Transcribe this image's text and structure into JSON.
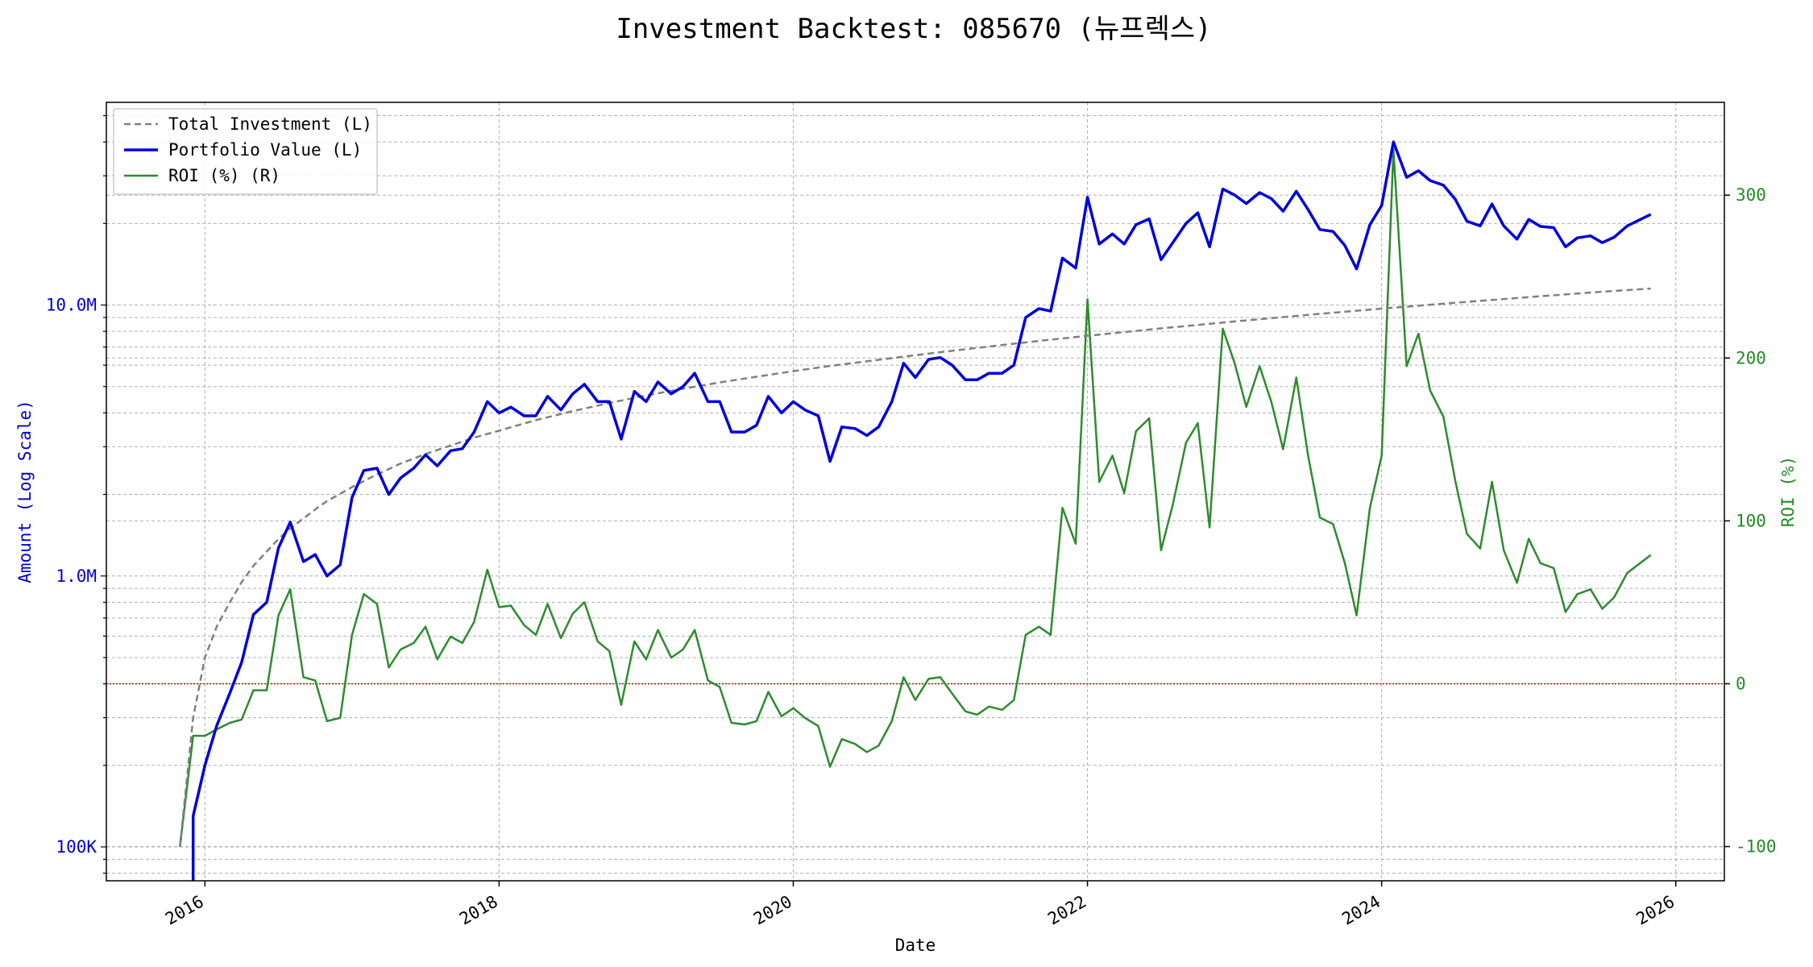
{
  "chart_data": {
    "type": "line",
    "title": "Investment Backtest: 085670 (뉴프렉스)",
    "xlabel": "Date",
    "ylabel_left": "Amount (Log Scale)",
    "ylabel_right": "ROI (%)",
    "y_left_scale": "log",
    "y_left_ticks": [
      {
        "value": 100000,
        "label": "100K"
      },
      {
        "value": 1000000,
        "label": "1.0M"
      },
      {
        "value": 10000000,
        "label": "10.0M"
      }
    ],
    "y_right_ticks": [
      -100,
      0,
      100,
      200,
      300
    ],
    "x_ticks": [
      "2016",
      "2018",
      "2020",
      "2022",
      "2024",
      "2026"
    ],
    "ylim_left": [
      75000,
      56000000
    ],
    "ylim_right": [
      -121,
      357
    ],
    "xlim": [
      2015.33,
      2026.33
    ],
    "grid": true,
    "zero_line_roi": 0,
    "legend_position": "upper-left",
    "colors": {
      "investment": "#808080",
      "portfolio": "#0000dd",
      "roi": "#2e8b2e",
      "zero_line": "#dd0000"
    },
    "legend": [
      "Total Investment (L)",
      "Portfolio Value (L)",
      "ROI (%) (R)"
    ],
    "series": [
      {
        "name": "Total Investment (L)",
        "axis": "left",
        "style": "dashed",
        "x": [
          2015.83,
          2015.92,
          2016.0,
          2016.08,
          2016.17,
          2016.25,
          2016.33,
          2016.42,
          2016.5,
          2016.58,
          2016.67,
          2016.75,
          2016.83,
          2016.92,
          2017.0,
          2017.17,
          2017.33,
          2017.5,
          2017.67,
          2017.83,
          2018.0,
          2018.25,
          2018.5,
          2018.75,
          2019.0,
          2019.25,
          2019.5,
          2019.75,
          2020.0,
          2020.25,
          2020.5,
          2020.75,
          2021.0,
          2021.25,
          2021.5,
          2021.75,
          2022.0,
          2022.5,
          2023.0,
          2023.5,
          2024.0,
          2024.5,
          2025.0,
          2025.5,
          2025.83
        ],
        "values": [
          100000,
          300000,
          500000,
          650000,
          800000,
          950000,
          1090000,
          1230000,
          1370000,
          1500000,
          1630000,
          1760000,
          1890000,
          2010000,
          2130000,
          2370000,
          2600000,
          2820000,
          3030000,
          3240000,
          3440000,
          3760000,
          4060000,
          4350000,
          4640000,
          4910000,
          5180000,
          5440000,
          5700000,
          5960000,
          6200000,
          6450000,
          6700000,
          6950000,
          7200000,
          7450000,
          7700000,
          8200000,
          8700000,
          9200000,
          9700000,
          10200000,
          10700000,
          11200000,
          11500000
        ]
      },
      {
        "name": "Portfolio Value (L)",
        "axis": "left",
        "style": "solid",
        "x": [
          2015.92,
          2016.0,
          2016.08,
          2016.17,
          2016.25,
          2016.33,
          2016.42,
          2016.5,
          2016.58,
          2016.67,
          2016.75,
          2016.83,
          2016.92,
          2017.0,
          2017.08,
          2017.17,
          2017.25,
          2017.33,
          2017.42,
          2017.5,
          2017.58,
          2017.67,
          2017.75,
          2017.83,
          2017.92,
          2018.0,
          2018.08,
          2018.17,
          2018.25,
          2018.33,
          2018.42,
          2018.5,
          2018.58,
          2018.67,
          2018.75,
          2018.83,
          2018.92,
          2019.0,
          2019.08,
          2019.17,
          2019.25,
          2019.33,
          2019.42,
          2019.5,
          2019.58,
          2019.67,
          2019.75,
          2019.83,
          2019.92,
          2020.0,
          2020.08,
          2020.17,
          2020.25,
          2020.33,
          2020.42,
          2020.5,
          2020.58,
          2020.67,
          2020.75,
          2020.83,
          2020.92,
          2021.0,
          2021.08,
          2021.17,
          2021.25,
          2021.33,
          2021.42,
          2021.5,
          2021.58,
          2021.67,
          2021.75,
          2021.83,
          2021.92,
          2022.0,
          2022.08,
          2022.17,
          2022.25,
          2022.33,
          2022.42,
          2022.5,
          2022.58,
          2022.67,
          2022.75,
          2022.83,
          2022.92,
          2023.0,
          2023.08,
          2023.17,
          2023.25,
          2023.33,
          2023.42,
          2023.5,
          2023.58,
          2023.67,
          2023.75,
          2023.83,
          2023.92,
          2024.0,
          2024.08,
          2024.17,
          2024.25,
          2024.33,
          2024.42,
          2024.5,
          2024.58,
          2024.67,
          2024.75,
          2024.83,
          2024.92,
          2025.0,
          2025.08,
          2025.17,
          2025.25,
          2025.33,
          2025.42,
          2025.5,
          2025.58,
          2025.67,
          2025.83
        ],
        "values": [
          130000,
          200000,
          280000,
          370000,
          480000,
          720000,
          800000,
          1270000,
          1580000,
          1130000,
          1200000,
          1000000,
          1100000,
          1950000,
          2450000,
          2500000,
          2000000,
          2300000,
          2500000,
          2800000,
          2550000,
          2900000,
          2950000,
          3400000,
          4400000,
          4000000,
          4200000,
          3900000,
          3900000,
          4600000,
          4100000,
          4700000,
          5100000,
          4400000,
          4400000,
          3200000,
          4800000,
          4400000,
          5200000,
          4700000,
          5000000,
          5600000,
          4400000,
          4400000,
          3400000,
          3400000,
          3600000,
          4600000,
          4000000,
          4400000,
          4100000,
          3900000,
          2650000,
          3550000,
          3500000,
          3300000,
          3550000,
          4400000,
          6100000,
          5400000,
          6300000,
          6400000,
          6000000,
          5300000,
          5300000,
          5600000,
          5600000,
          6000000,
          9000000,
          9700000,
          9500000,
          14900000,
          13700000,
          25000000,
          16800000,
          18300000,
          16800000,
          19800000,
          20800000,
          14700000,
          17000000,
          20000000,
          21900000,
          16400000,
          26800000,
          25500000,
          23700000,
          26000000,
          24700000,
          22200000,
          26300000,
          22500000,
          19000000,
          18700000,
          16600000,
          13600000,
          19800000,
          23300000,
          40000000,
          29600000,
          31300000,
          28800000,
          27700000,
          24600000,
          20400000,
          19600000,
          23600000,
          19600000,
          17500000,
          20700000,
          19500000,
          19300000,
          16400000,
          17700000,
          18000000,
          17000000,
          17800000,
          19600000,
          21600000
        ]
      },
      {
        "name": "ROI (%) (R)",
        "axis": "right",
        "style": "solid",
        "x": [
          2015.83,
          2015.92,
          2016.0,
          2016.08,
          2016.17,
          2016.25,
          2016.33,
          2016.42,
          2016.5,
          2016.58,
          2016.67,
          2016.75,
          2016.83,
          2016.92,
          2017.0,
          2017.08,
          2017.17,
          2017.25,
          2017.33,
          2017.42,
          2017.5,
          2017.58,
          2017.67,
          2017.75,
          2017.83,
          2017.92,
          2018.0,
          2018.08,
          2018.17,
          2018.25,
          2018.33,
          2018.42,
          2018.5,
          2018.58,
          2018.67,
          2018.75,
          2018.83,
          2018.92,
          2019.0,
          2019.08,
          2019.17,
          2019.25,
          2019.33,
          2019.42,
          2019.5,
          2019.58,
          2019.67,
          2019.75,
          2019.83,
          2019.92,
          2020.0,
          2020.08,
          2020.17,
          2020.25,
          2020.33,
          2020.42,
          2020.5,
          2020.58,
          2020.67,
          2020.75,
          2020.83,
          2020.92,
          2021.0,
          2021.08,
          2021.17,
          2021.25,
          2021.33,
          2021.42,
          2021.5,
          2021.58,
          2021.67,
          2021.75,
          2021.83,
          2021.92,
          2022.0,
          2022.08,
          2022.17,
          2022.25,
          2022.33,
          2022.42,
          2022.5,
          2022.58,
          2022.67,
          2022.75,
          2022.83,
          2022.92,
          2023.0,
          2023.08,
          2023.17,
          2023.25,
          2023.33,
          2023.42,
          2023.5,
          2023.58,
          2023.67,
          2023.75,
          2023.83,
          2023.92,
          2024.0,
          2024.08,
          2024.17,
          2024.25,
          2024.33,
          2024.42,
          2024.5,
          2024.58,
          2024.67,
          2024.75,
          2024.83,
          2024.92,
          2025.0,
          2025.08,
          2025.17,
          2025.25,
          2025.33,
          2025.42,
          2025.5,
          2025.58,
          2025.67,
          2025.83
        ],
        "values": [
          -100,
          -32,
          -32,
          -28,
          -24,
          -22,
          -4,
          -4,
          42,
          58,
          4,
          2,
          -23,
          -21,
          30,
          55,
          49,
          10,
          21,
          25,
          35,
          15,
          29,
          25,
          38,
          70,
          47,
          48,
          36,
          30,
          49,
          28,
          43,
          50,
          26,
          20,
          -13,
          26,
          15,
          33,
          16,
          21,
          33,
          2,
          -2,
          -24,
          -25,
          -23,
          -5,
          -20,
          -15,
          -21,
          -26,
          -51,
          -34,
          -37,
          -42,
          -38,
          -23,
          4,
          -10,
          3,
          4,
          -6,
          -17,
          -19,
          -14,
          -16,
          -10,
          30,
          35,
          30,
          108,
          86,
          236,
          124,
          140,
          117,
          155,
          163,
          82,
          110,
          148,
          160,
          96,
          218,
          197,
          170,
          195,
          173,
          144,
          188,
          140,
          102,
          98,
          74,
          42,
          108,
          140,
          328,
          195,
          215,
          180,
          164,
          125,
          92,
          83,
          124,
          82,
          62,
          89,
          74,
          71,
          44,
          55,
          58,
          46,
          53,
          68,
          79
        ]
      }
    ]
  }
}
